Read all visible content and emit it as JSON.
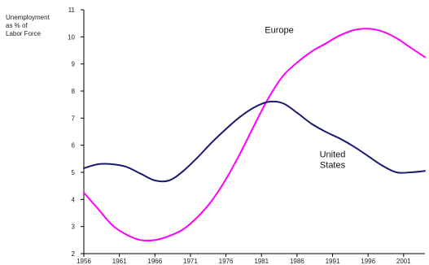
{
  "chart_data": {
    "type": "line",
    "title": "",
    "ylabel_lines": [
      "Unemployment",
      "as % of",
      "Labor Force"
    ],
    "xlabel": "",
    "xlim": [
      1956,
      2004
    ],
    "ylim": [
      2,
      11
    ],
    "x_ticks": [
      1956,
      1961,
      1966,
      1971,
      1976,
      1981,
      1986,
      1991,
      1996,
      2001
    ],
    "y_ticks": [
      2,
      3,
      4,
      5,
      6,
      7,
      8,
      9,
      10,
      11
    ],
    "grid": false,
    "series": [
      {
        "name": "Europe",
        "color": "#ff00ff",
        "x": [
          1956,
          1958,
          1960,
          1962,
          1964,
          1966,
          1968,
          1970,
          1972,
          1974,
          1976,
          1978,
          1980,
          1982,
          1984,
          1986,
          1988,
          1990,
          1992,
          1994,
          1996,
          1998,
          2000,
          2002,
          2004
        ],
        "values": [
          4.25,
          3.65,
          3.05,
          2.7,
          2.5,
          2.5,
          2.65,
          2.9,
          3.35,
          3.95,
          4.75,
          5.7,
          6.75,
          7.75,
          8.55,
          9.05,
          9.45,
          9.75,
          10.05,
          10.25,
          10.3,
          10.2,
          9.95,
          9.6,
          9.25
        ]
      },
      {
        "name": "United States",
        "color": "#1a1a6e",
        "x": [
          1956,
          1958,
          1960,
          1962,
          1964,
          1966,
          1968,
          1970,
          1972,
          1974,
          1976,
          1978,
          1980,
          1982,
          1984,
          1986,
          1988,
          1990,
          1992,
          1994,
          1996,
          1998,
          2000,
          2002,
          2004
        ],
        "values": [
          5.15,
          5.3,
          5.3,
          5.2,
          4.95,
          4.7,
          4.7,
          5.05,
          5.55,
          6.1,
          6.6,
          7.05,
          7.4,
          7.6,
          7.55,
          7.2,
          6.8,
          6.5,
          6.25,
          5.95,
          5.6,
          5.25,
          5.0,
          5.0,
          5.05
        ]
      }
    ],
    "annotations": [
      {
        "text": "Europe",
        "x": 1983.5,
        "y": 10.15
      },
      {
        "lines": [
          "United",
          "States"
        ],
        "x": 1991,
        "y": 5.55
      }
    ]
  }
}
